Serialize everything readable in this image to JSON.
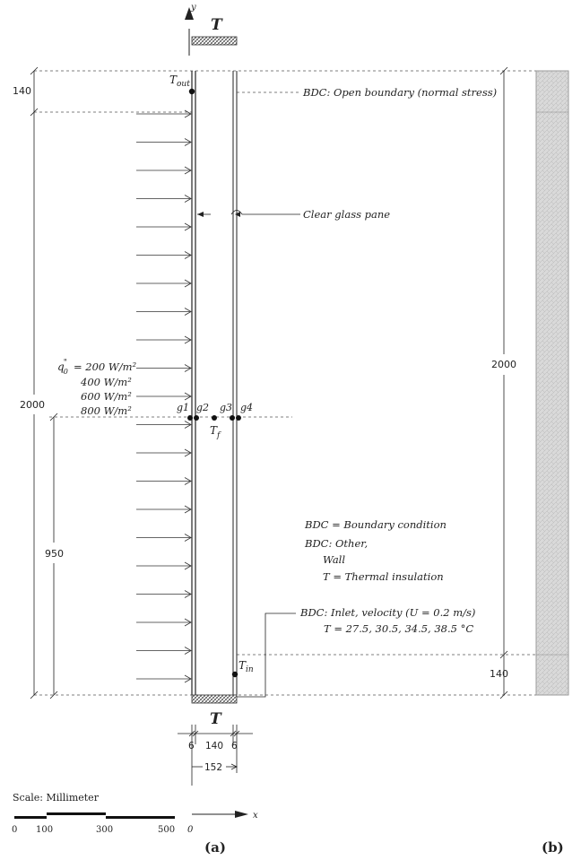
{
  "top_label_T": "T",
  "bottom_label_T": "T",
  "axes": {
    "y": "y",
    "x": "x",
    "origin": "0"
  },
  "t_out": {
    "base": "T",
    "sub": "out"
  },
  "t_in": {
    "base": "T",
    "sub": "in"
  },
  "t_f": {
    "base": "T",
    "sub": "f"
  },
  "bdc_open": "BDC: Open boundary (normal stress)",
  "glass_label": "Clear glass pane",
  "heat_flux": {
    "symbol": "q",
    "values": [
      "= 200 W/m²",
      "400 W/m²",
      "600 W/m²",
      "800 W/m²"
    ]
  },
  "gauges": [
    "g1",
    "g2",
    "g3",
    "g4"
  ],
  "legend": {
    "bdc_def": "BDC = Boundary condition",
    "other_1": "BDC: Other,",
    "other_2": "Wall",
    "other_3": "T = Thermal insulation",
    "inlet_1": "BDC: Inlet, velocity (U = 0.2 m/s)",
    "inlet_2": "T = 27.5, 30.5, 34.5, 38.5 °C"
  },
  "dims": {
    "top_gap": "140",
    "total_left": "2000",
    "height_950": "950",
    "total_right": "2000",
    "bottom_gap": "140",
    "w_left": "6",
    "w_mid": "140",
    "w_right": "6",
    "w_total": "152"
  },
  "scale": {
    "title": "Scale: Millimeter",
    "ticks": [
      "0",
      "100",
      "300",
      "500"
    ]
  },
  "panel_labels": {
    "a": "(a)",
    "b": "(b)"
  }
}
